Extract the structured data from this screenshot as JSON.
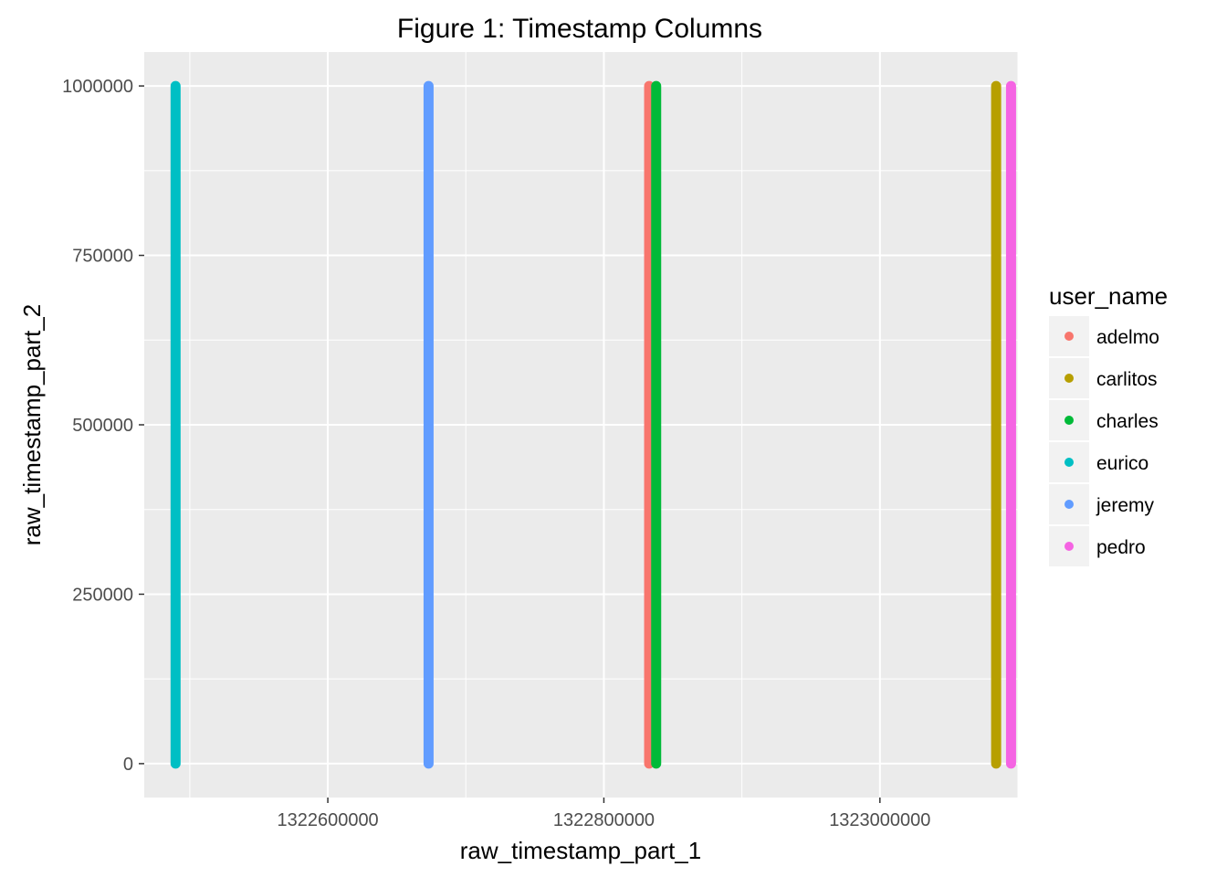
{
  "chart_data": {
    "type": "scatter",
    "title": "Figure 1: Timestamp Columns",
    "xlabel": "raw_timestamp_part_1",
    "ylabel": "raw_timestamp_part_2",
    "xlim": [
      1322467000,
      1323100000
    ],
    "ylim": [
      -50000,
      1050000
    ],
    "x_ticks": [
      1322600000,
      1322800000,
      1323000000
    ],
    "x_tick_labels": [
      "1322600000",
      "1322800000",
      "1323000000"
    ],
    "y_ticks": [
      0,
      250000,
      500000,
      750000,
      1000000
    ],
    "y_tick_labels": [
      "0",
      "250000",
      "500000",
      "750000",
      "1000000"
    ],
    "grid": true,
    "legend": {
      "title": "user_name",
      "position": "right"
    },
    "series": [
      {
        "name": "adelmo",
        "color": "#F8766D",
        "x": 1322832800,
        "y_range": [
          0,
          1000000
        ]
      },
      {
        "name": "carlitos",
        "color": "#B79F00",
        "x": 1323084200,
        "y_range": [
          0,
          1000000
        ]
      },
      {
        "name": "charles",
        "color": "#00BA38",
        "x": 1322837900,
        "y_range": [
          0,
          1000000
        ]
      },
      {
        "name": "eurico",
        "color": "#00BFC4",
        "x": 1322489700,
        "y_range": [
          0,
          1000000
        ]
      },
      {
        "name": "jeremy",
        "color": "#619CFF",
        "x": 1322673000,
        "y_range": [
          0,
          1000000
        ]
      },
      {
        "name": "pedro",
        "color": "#F564E3",
        "x": 1323095000,
        "y_range": [
          0,
          1000000
        ]
      }
    ]
  }
}
